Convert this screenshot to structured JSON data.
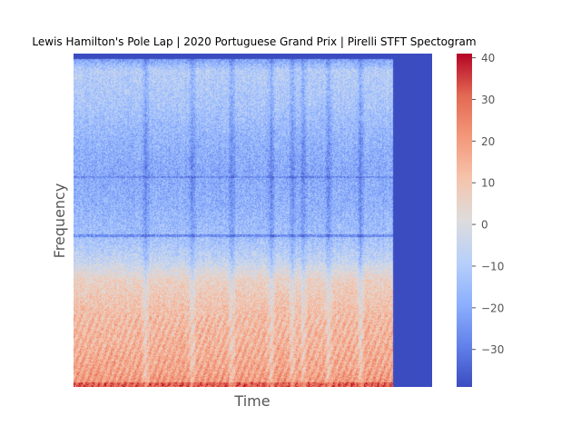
{
  "chart_data": {
    "type": "heatmap",
    "title": "Lewis Hamilton's Pole Lap | 2020 Portuguese Grand Prix | Pirelli STFT Spectogram",
    "xlabel": "Time",
    "ylabel": "Frequency",
    "colormap": "coolwarm",
    "zlim": [
      -39,
      41
    ],
    "colorbar_ticks": [
      40,
      30,
      20,
      10,
      0,
      -10,
      -20,
      -30
    ],
    "colorbar_tick_labels": [
      "40",
      "30",
      "20",
      "10",
      "0",
      "−10",
      "−20",
      "−30"
    ],
    "grid": false,
    "low_freq_level_profile": [
      {
        "freq_fraction": 0.0,
        "level": 22
      },
      {
        "freq_fraction": 0.05,
        "level": 18
      },
      {
        "freq_fraction": 0.12,
        "level": 15
      },
      {
        "freq_fraction": 0.22,
        "level": 12
      },
      {
        "freq_fraction": 0.32,
        "level": 6
      },
      {
        "freq_fraction": 0.38,
        "level": -6
      },
      {
        "freq_fraction": 0.45,
        "level": -14
      },
      {
        "freq_fraction": 0.55,
        "level": -18
      },
      {
        "freq_fraction": 0.65,
        "level": -20
      },
      {
        "freq_fraction": 0.75,
        "level": -17
      },
      {
        "freq_fraction": 0.85,
        "level": -12
      },
      {
        "freq_fraction": 0.95,
        "level": -9
      },
      {
        "freq_fraction": 1.0,
        "level": -28
      }
    ],
    "signal_end_fraction": 0.89,
    "silent_level": -39,
    "colors": {
      "cmap_stops": [
        "#3b4cc0",
        "#6282ea",
        "#8db0fe",
        "#b8d0f9",
        "#dddcdc",
        "#f5c4ac",
        "#f4987a",
        "#e26952",
        "#b40426"
      ]
    }
  }
}
